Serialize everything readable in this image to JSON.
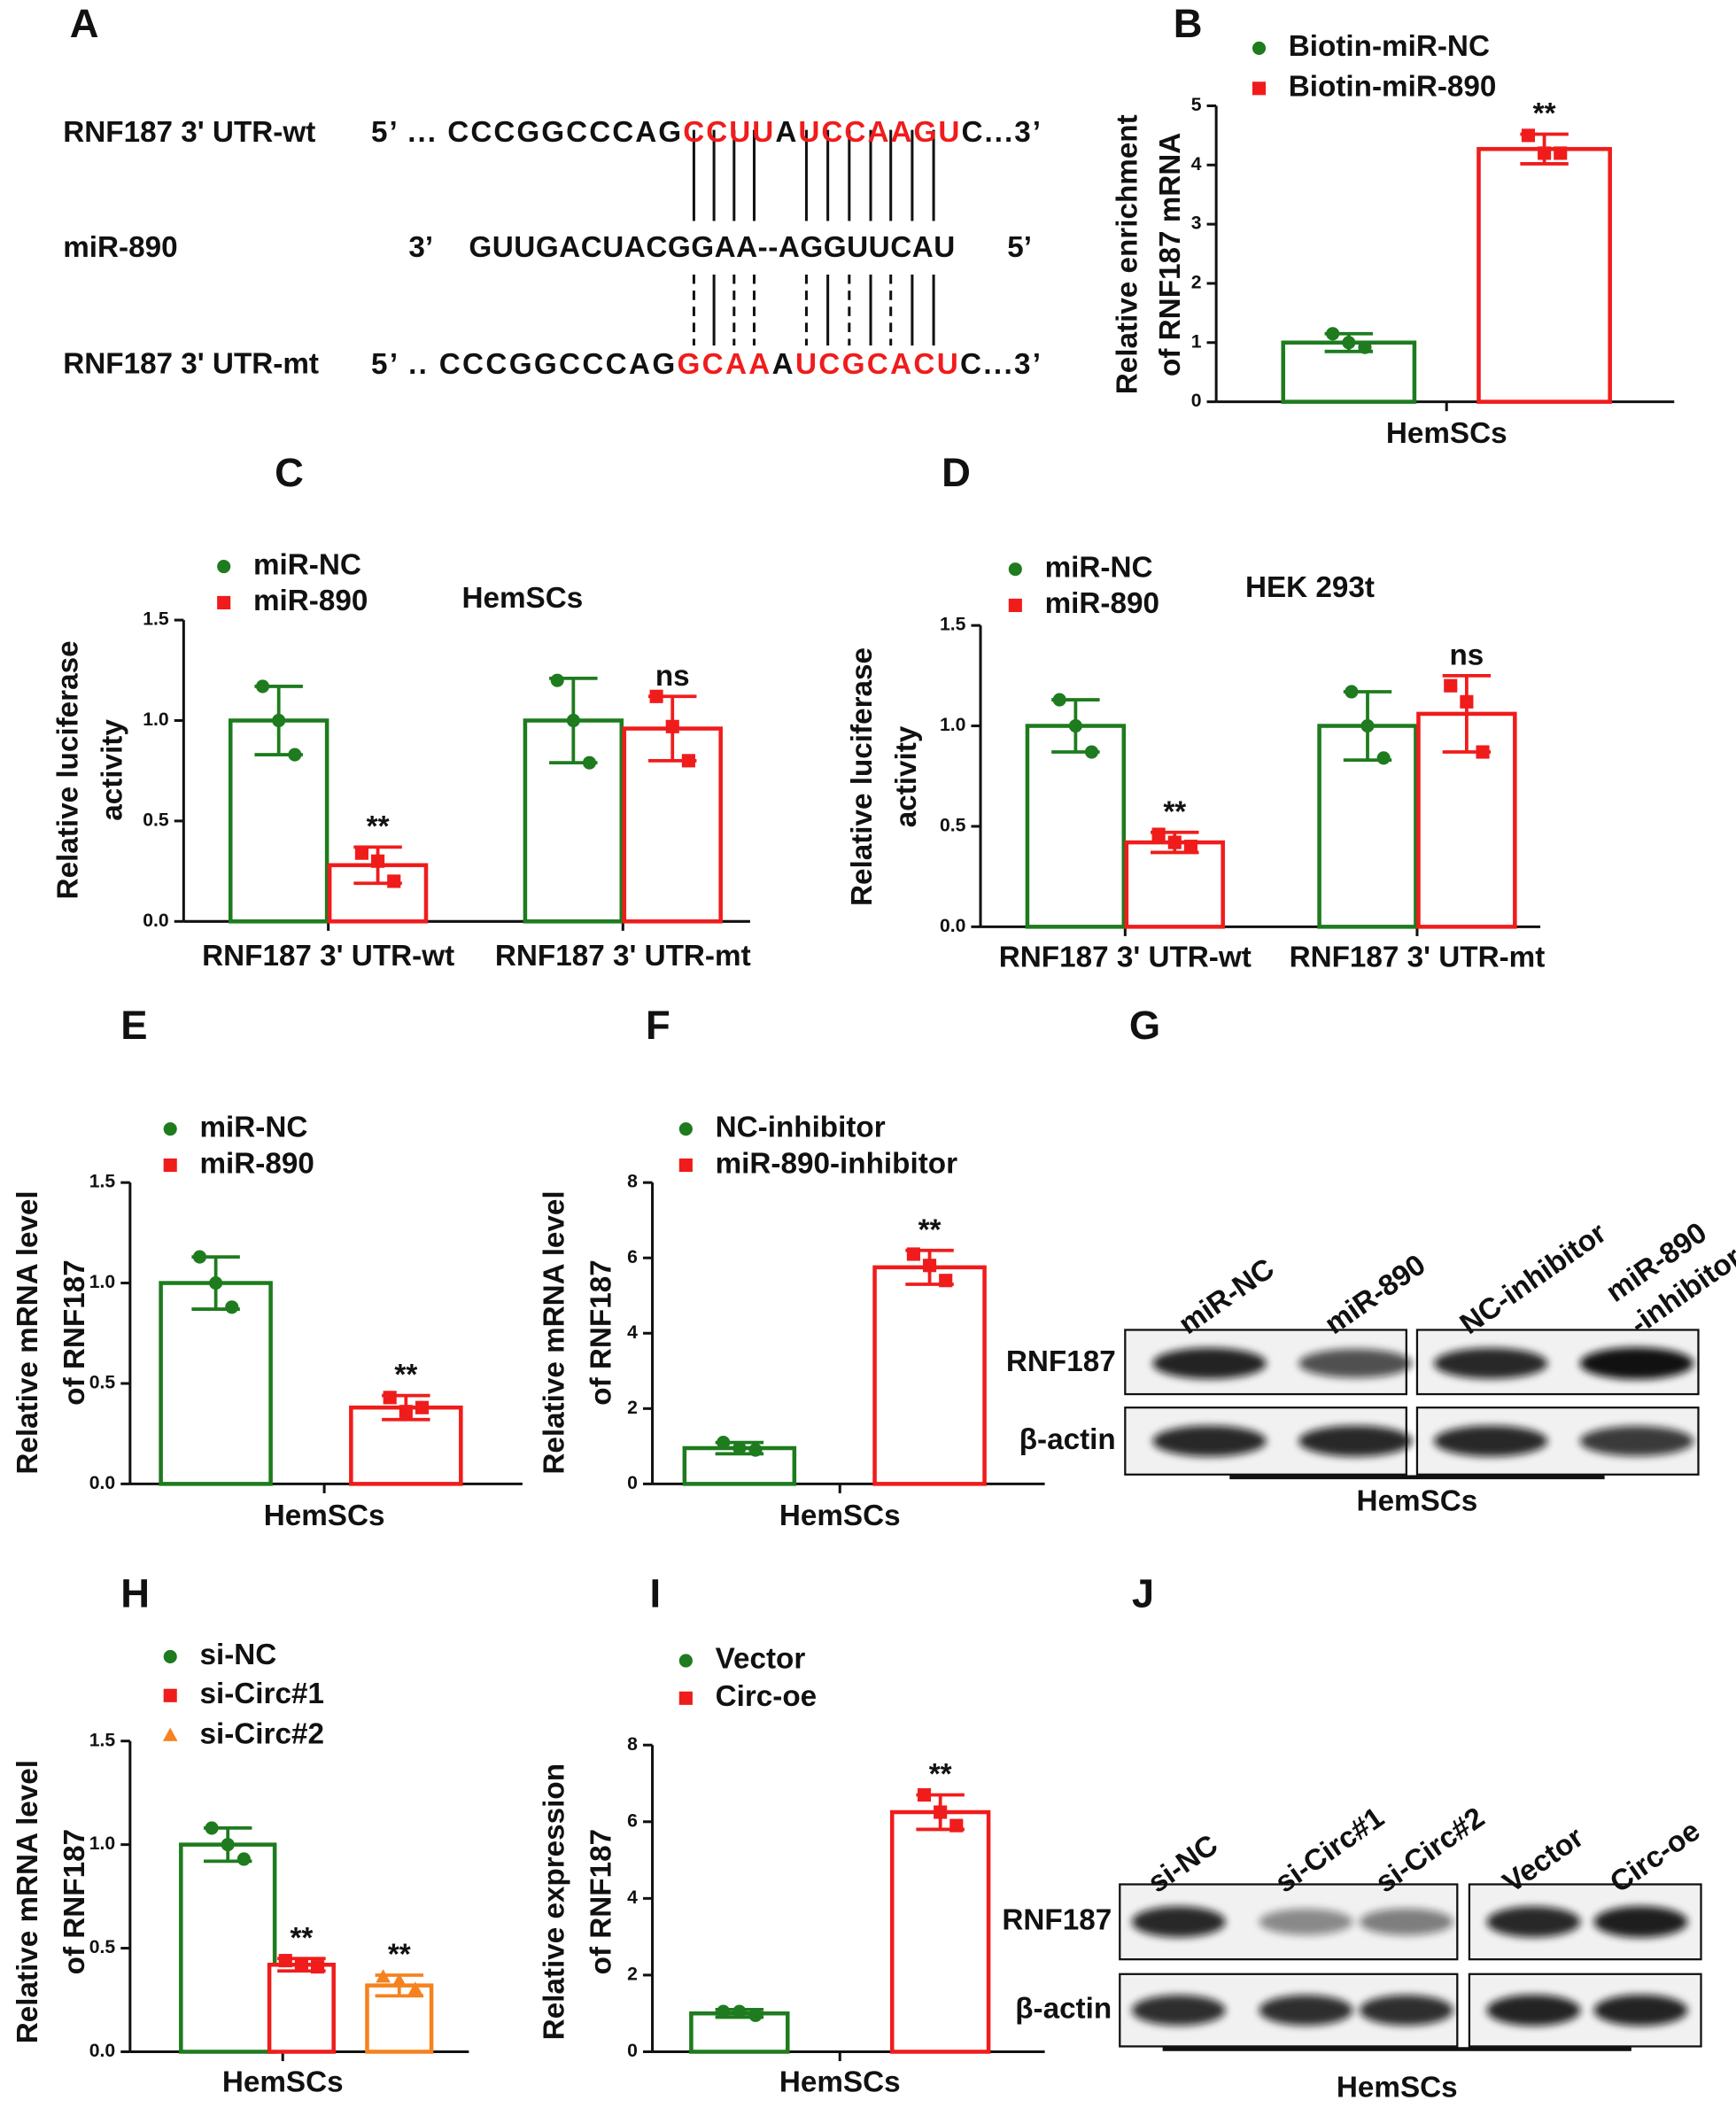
{
  "sequence_panel": {
    "panel": "A",
    "highlight_color": "#f01c1c",
    "rows": [
      {
        "label": "RNF187 3' UTR-wt",
        "segments": [
          {
            "text": "5’ ... CCCGGCCCAG",
            "highlight": false
          },
          {
            "text": "CCUU",
            "highlight": true
          },
          {
            "text": "A",
            "highlight": false
          },
          {
            "text": "UCCAAGU",
            "highlight": true
          },
          {
            "text": "C...3’",
            "highlight": false
          }
        ]
      },
      {
        "label": "miR-890",
        "segments": [
          {
            "text": "3’",
            "highlight": false
          },
          {
            "text": "GUUGACUACGGAA--AGGUUCAU",
            "highlight": false
          },
          {
            "text": "5’",
            "highlight": false
          }
        ]
      },
      {
        "label": "RNF187 3' UTR-mt",
        "segments": [
          {
            "text": "5’ .. CCCGGCCCAG",
            "highlight": false
          },
          {
            "text": "GCAA",
            "highlight": true
          },
          {
            "text": "A",
            "highlight": false
          },
          {
            "text": "UCGCACU",
            "highlight": true
          },
          {
            "text": "C...3’",
            "highlight": false
          }
        ]
      }
    ]
  },
  "chart_data": [
    {
      "type": "bar",
      "panel": "B",
      "ylabel": [
        "Relative enrichment",
        "of RNF187 mRNA"
      ],
      "categories": [
        "HemSCs"
      ],
      "series": [
        {
          "name": "Biotin-miR-NC",
          "color": "#1e7b1e",
          "marker": "circle",
          "values": [
            1.0
          ],
          "errors": [
            0.15
          ],
          "points": [
            [
              1.15,
              1.0,
              0.92
            ]
          ]
        },
        {
          "name": "Biotin-miR-890",
          "color": "#f01c1c",
          "marker": "square",
          "values": [
            4.27
          ],
          "errors": [
            0.25
          ],
          "points": [
            [
              4.5,
              4.2,
              4.2
            ]
          ],
          "significance": [
            "**"
          ]
        }
      ],
      "ylim": [
        0,
        5
      ],
      "yticks": [
        0,
        1,
        2,
        3,
        4,
        5
      ]
    },
    {
      "type": "bar",
      "panel": "C",
      "title": "HemSCs",
      "ylabel": [
        "Relative luciferase",
        "activity"
      ],
      "categories": [
        "RNF187 3' UTR-wt",
        "RNF187 3' UTR-mt"
      ],
      "series": [
        {
          "name": "miR-NC",
          "color": "#1e7b1e",
          "marker": "circle",
          "values": [
            1.0,
            1.0
          ],
          "errors": [
            0.17,
            0.21
          ],
          "points": [
            [
              1.17,
              1.0,
              0.83
            ],
            [
              1.2,
              1.0,
              0.79
            ]
          ]
        },
        {
          "name": "miR-890",
          "color": "#f01c1c",
          "marker": "square",
          "values": [
            0.28,
            0.96
          ],
          "errors": [
            0.09,
            0.16
          ],
          "points": [
            [
              0.34,
              0.3,
              0.2
            ],
            [
              1.12,
              0.97,
              0.8
            ]
          ],
          "significance": [
            "**",
            "ns"
          ]
        }
      ],
      "ylim": [
        0,
        1.5
      ],
      "yticks": [
        {
          "value": 0,
          "label": "0.0"
        },
        0.5,
        {
          "value": 1,
          "label": "1.0"
        },
        1.5
      ]
    },
    {
      "type": "bar",
      "panel": "D",
      "title": "HEK 293t",
      "ylabel": [
        "Relative luciferase",
        "activity"
      ],
      "categories": [
        "RNF187 3' UTR-wt",
        "RNF187 3' UTR-mt"
      ],
      "series": [
        {
          "name": "miR-NC",
          "color": "#1e7b1e",
          "marker": "circle",
          "values": [
            1.0,
            1.0
          ],
          "errors": [
            0.13,
            0.17
          ],
          "points": [
            [
              1.13,
              1.0,
              0.87
            ],
            [
              1.17,
              1.0,
              0.84
            ]
          ]
        },
        {
          "name": "miR-890",
          "color": "#f01c1c",
          "marker": "square",
          "values": [
            0.42,
            1.06
          ],
          "errors": [
            0.05,
            0.19
          ],
          "points": [
            [
              0.46,
              0.42,
              0.4
            ],
            [
              1.2,
              1.12,
              0.87
            ]
          ],
          "significance": [
            "**",
            "ns"
          ]
        }
      ],
      "ylim": [
        0,
        1.5
      ],
      "yticks": [
        {
          "value": 0,
          "label": "0.0"
        },
        0.5,
        {
          "value": 1,
          "label": "1.0"
        },
        1.5
      ]
    },
    {
      "type": "bar",
      "panel": "E",
      "ylabel": [
        "Relative mRNA level",
        "of RNF187"
      ],
      "categories": [
        "HemSCs"
      ],
      "series": [
        {
          "name": "miR-NC",
          "color": "#1e7b1e",
          "marker": "circle",
          "values": [
            1.0
          ],
          "errors": [
            0.13
          ],
          "points": [
            [
              1.13,
              1.0,
              0.88
            ]
          ]
        },
        {
          "name": "miR-890",
          "color": "#f01c1c",
          "marker": "square",
          "values": [
            0.38
          ],
          "errors": [
            0.06
          ],
          "points": [
            [
              0.43,
              0.36,
              0.38
            ]
          ],
          "significance": [
            "**"
          ]
        }
      ],
      "ylim": [
        0,
        1.5
      ],
      "yticks": [
        {
          "value": 0,
          "label": "0.0"
        },
        0.5,
        {
          "value": 1,
          "label": "1.0"
        },
        1.5
      ]
    },
    {
      "type": "bar",
      "panel": "F",
      "ylabel": [
        "Relative mRNA level",
        "of RNF187"
      ],
      "categories": [
        "HemSCs"
      ],
      "series": [
        {
          "name": "NC-inhibitor",
          "color": "#1e7b1e",
          "marker": "circle",
          "values": [
            0.95
          ],
          "errors": [
            0.15
          ],
          "points": [
            [
              1.1,
              0.95,
              0.9
            ]
          ]
        },
        {
          "name": "miR-890-inhibitor",
          "color": "#f01c1c",
          "marker": "square",
          "values": [
            5.75
          ],
          "errors": [
            0.45
          ],
          "points": [
            [
              6.1,
              5.8,
              5.4
            ]
          ],
          "significance": [
            "**"
          ]
        }
      ],
      "ylim": [
        0,
        8
      ],
      "yticks": [
        0,
        2,
        4,
        6,
        8
      ]
    },
    {
      "type": "bar",
      "panel": "H",
      "ylabel": [
        "Relative mRNA level",
        "of RNF187"
      ],
      "categories": [
        "HemSCs"
      ],
      "series": [
        {
          "name": "si-NC",
          "color": "#1e7b1e",
          "marker": "circle",
          "values": [
            1.0
          ],
          "errors": [
            0.08
          ],
          "points": [
            [
              1.08,
              1.0,
              0.93
            ]
          ]
        },
        {
          "name": "si-Circ#1",
          "color": "#f01c1c",
          "marker": "square",
          "values": [
            0.42
          ],
          "errors": [
            0.03
          ],
          "points": [
            [
              0.44,
              0.42,
              0.41
            ]
          ],
          "significance": [
            "**"
          ]
        },
        {
          "name": "si-Circ#2",
          "color": "#f5821f",
          "marker": "triangle",
          "values": [
            0.32
          ],
          "errors": [
            0.05
          ],
          "points": [
            [
              0.36,
              0.34,
              0.3
            ]
          ],
          "significance": [
            "**"
          ]
        }
      ],
      "ylim": [
        0,
        1.5
      ],
      "yticks": [
        {
          "value": 0,
          "label": "0.0"
        },
        0.5,
        {
          "value": 1,
          "label": "1.0"
        },
        1.5
      ]
    },
    {
      "type": "bar",
      "panel": "I",
      "ylabel": [
        "Relative expression",
        "of RNF187"
      ],
      "categories": [
        "HemSCs"
      ],
      "series": [
        {
          "name": "Vector",
          "color": "#1e7b1e",
          "marker": "circle",
          "values": [
            1.0
          ],
          "errors": [
            0.1
          ],
          "points": [
            [
              1.05,
              1.05,
              0.95
            ]
          ]
        },
        {
          "name": "Circ-oe",
          "color": "#f01c1c",
          "marker": "square",
          "values": [
            6.25
          ],
          "errors": [
            0.45
          ],
          "points": [
            [
              6.7,
              6.25,
              5.9
            ]
          ],
          "significance": [
            "**"
          ]
        }
      ],
      "ylim": [
        0,
        8
      ],
      "yticks": [
        0,
        2,
        4,
        6,
        8
      ]
    }
  ],
  "blots": [
    {
      "panel": "G",
      "lanes": [
        [
          "miR-NC"
        ],
        [
          "miR-890"
        ],
        [
          "NC-inhibitor"
        ],
        [
          "miR-890",
          "-inhibitor"
        ]
      ],
      "rows": [
        "RNF187",
        "β-actin"
      ],
      "cell": "HemSCs"
    },
    {
      "panel": "J",
      "lanes": [
        [
          "si-NC"
        ],
        [
          "si-Circ#1"
        ],
        [
          "si-Circ#2"
        ],
        [
          "Vector"
        ],
        [
          "Circ-oe"
        ]
      ],
      "rows": [
        "RNF187",
        "β-actin"
      ],
      "cell": "HemSCs"
    }
  ]
}
